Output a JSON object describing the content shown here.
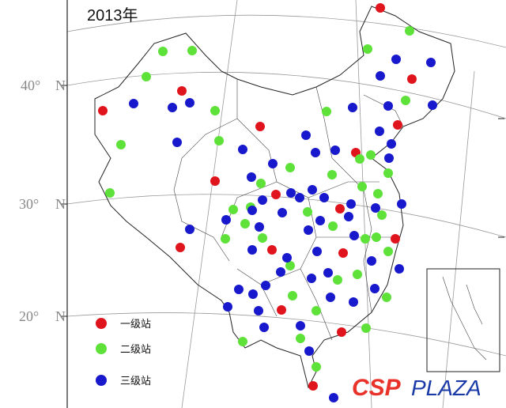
{
  "title": "2013年",
  "latitude_labels": [
    {
      "degree": "40°",
      "hemisphere": "N"
    },
    {
      "degree": "30°",
      "hemisphere": "N"
    },
    {
      "degree": "20°",
      "hemisphere": "N"
    }
  ],
  "legend": [
    {
      "label": "一级站",
      "color": "#e0141c"
    },
    {
      "label": "二级站",
      "color": "#5ee23a"
    },
    {
      "label": "三级站",
      "color": "#1818cc"
    }
  ],
  "watermark": {
    "brand": "CSP",
    "suffix": "PLAZA"
  }
}
